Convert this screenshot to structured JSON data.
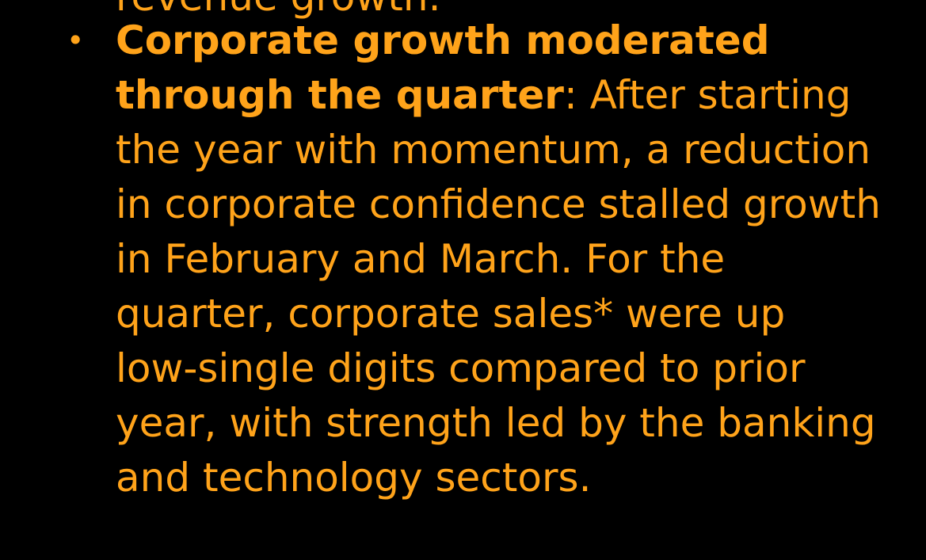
{
  "previous_bullet_tail": "revenue growth.",
  "bullet": {
    "marker": "•",
    "heading_line_1": "Corporate growth moderated",
    "heading_line_2": "through the quarter",
    "body_line_2_rest": ": After starting",
    "body_lines": [
      "the year with momentum, a reduction",
      "in corporate confidence stalled growth",
      "in February and March.  For the",
      "quarter, corporate sales* were up",
      "low-single digits compared to prior",
      "year, with strength led by the banking",
      "and technology sectors."
    ]
  },
  "colors": {
    "background": "#000000",
    "text": "#ffa31a"
  }
}
